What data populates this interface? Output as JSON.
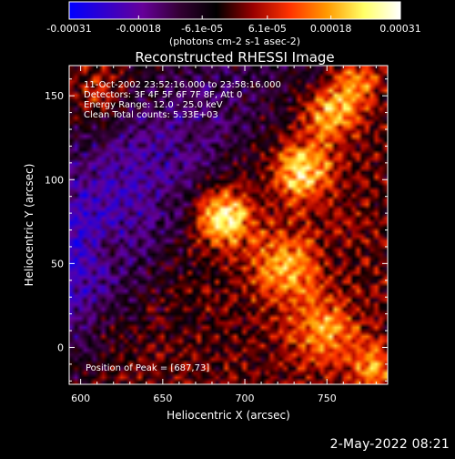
{
  "chart_data": {
    "type": "heatmap",
    "title": "Reconstructed RHESSI Image",
    "xlabel": "Heliocentric X (arcsec)",
    "ylabel": "Heliocentric Y (arcsec)",
    "xlim": [
      593,
      787
    ],
    "ylim": [
      -22,
      168
    ],
    "x_ticks": [
      600,
      650,
      700,
      750
    ],
    "y_ticks": [
      0,
      50,
      100,
      150
    ],
    "colorbar": {
      "range": [
        -0.00031,
        0.00031
      ],
      "tick_values": [
        -0.00031,
        -0.00018,
        -6.1e-05,
        6.1e-05,
        0.00018,
        0.00031
      ],
      "tick_labels": [
        "-0.00031",
        "-0.00018",
        "-6.1e-05",
        "6.1e-05",
        "0.00018",
        "0.00031"
      ],
      "unit_label": "(photons cm-2 s-1 asec-2)",
      "colors": [
        "#0000ff",
        "#3300cc",
        "#660099",
        "#330033",
        "#000000",
        "#990000",
        "#ff3300",
        "#ff9900",
        "#ffff66",
        "#ffffff"
      ]
    },
    "annotations": [
      "11-Oct-2002 23:52:16.000 to 23:58:16.000",
      "Detectors: 3F 4F 5F 6F 7F 8F, Att 0",
      "Energy Range: 12.0 - 25.0 keV",
      "Clean     Total counts: 5.33E+03"
    ],
    "peak_label": "Position of Peak = [687,73]",
    "peak": {
      "x": 687,
      "y": 73
    },
    "sources": [
      {
        "x": 687,
        "y": 78,
        "sigma": 12,
        "amplitude": 0.00031
      },
      {
        "x": 735,
        "y": 105,
        "sigma": 13,
        "amplitude": 0.00025
      },
      {
        "x": 752,
        "y": 140,
        "sigma": 12,
        "amplitude": 0.00022
      },
      {
        "x": 768,
        "y": 160,
        "sigma": 10,
        "amplitude": 0.00018
      },
      {
        "x": 725,
        "y": 48,
        "sigma": 14,
        "amplitude": 0.0002
      },
      {
        "x": 748,
        "y": 10,
        "sigma": 14,
        "amplitude": 0.00018
      },
      {
        "x": 778,
        "y": -12,
        "sigma": 10,
        "amplitude": 0.00017
      },
      {
        "x": 612,
        "y": 150,
        "sigma": 10,
        "amplitude": 0.00012
      },
      {
        "x": 615,
        "y": 60,
        "sigma": 8,
        "amplitude": 8e-05
      }
    ],
    "negative_band": {
      "intercept": 95,
      "slope": 0.95,
      "amplitude": -0.00025
    }
  },
  "footer": {
    "timestamp": "2-May-2022 08:21"
  },
  "colors": {
    "background": "#000000",
    "axes": "#ffffff",
    "text": "#ffffff"
  }
}
